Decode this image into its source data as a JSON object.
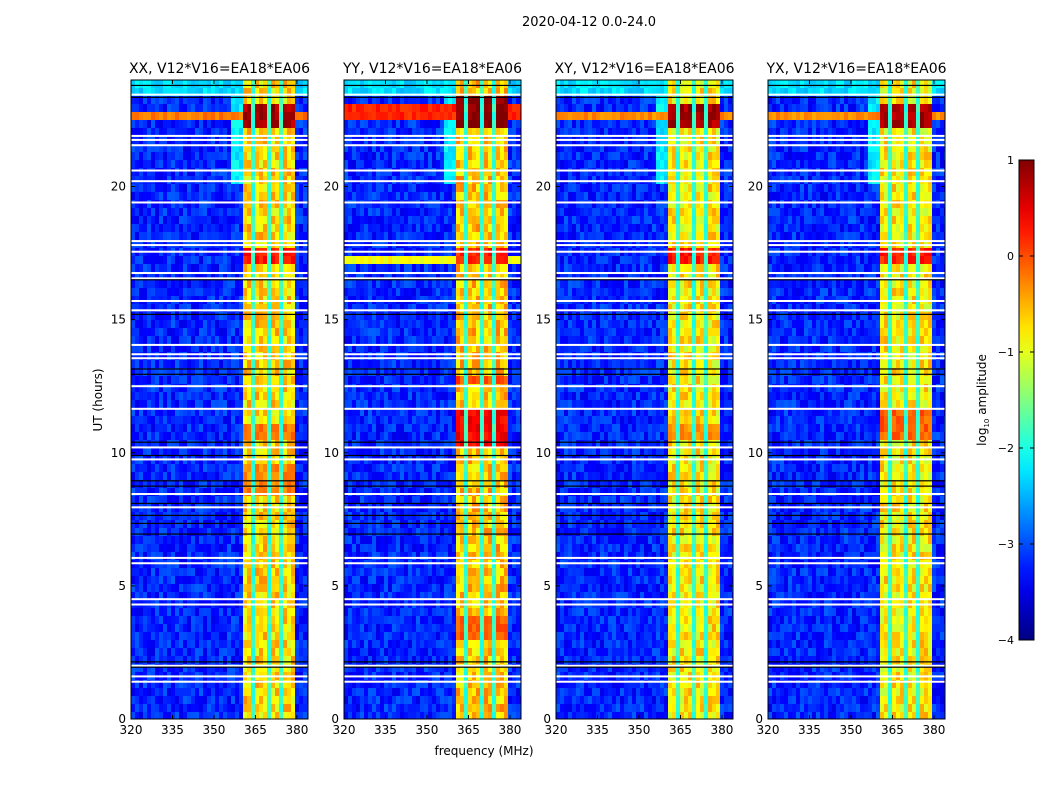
{
  "chart_data": {
    "type": "heatmap",
    "title": "2020-04-12 0.0-24.0",
    "xlabel": "frequency (MHz)",
    "ylabel": "UT (hours)",
    "xlim": [
      320,
      384
    ],
    "ylim": [
      0,
      24
    ],
    "xticks": [
      "320",
      "335",
      "350",
      "365",
      "380"
    ],
    "xtick_values": [
      320,
      335,
      350,
      365,
      380
    ],
    "yticks": [
      "0",
      "5",
      "10",
      "15",
      "20"
    ],
    "ytick_values": [
      0,
      5,
      10,
      15,
      20
    ],
    "colormap": "jet",
    "colorbar": {
      "label_main": "log",
      "label_sub": "10",
      "label_rest": " amplitude",
      "range": [
        -4,
        1
      ],
      "ticks": [
        "1",
        "0",
        "−1",
        "−2",
        "−3",
        "−4"
      ],
      "tick_values": [
        1,
        0,
        -1,
        -2,
        -3,
        -4
      ]
    },
    "panels": [
      {
        "title": "XX, V12*V16=EA18*EA06",
        "band_level": -0.7,
        "strong_intervals": [
          [
            22.3,
            23.0,
            0.8
          ],
          [
            17.1,
            17.8,
            0.3
          ],
          [
            10.6,
            11.2,
            -0.2
          ],
          [
            8.3,
            9.5,
            -0.3
          ]
        ],
        "wideband_rfi": [
          [
            22.55,
            22.85,
            -0.2
          ]
        ]
      },
      {
        "title": "YY, V12*V16=EA18*EA06",
        "band_level": -0.6,
        "strong_intervals": [
          [
            22.2,
            23.3,
            1.0
          ],
          [
            17.1,
            17.8,
            0.2
          ],
          [
            10.3,
            11.6,
            0.4
          ],
          [
            3.0,
            4.0,
            -0.1
          ],
          [
            12.5,
            13.0,
            0.0
          ]
        ],
        "wideband_rfi": [
          [
            22.4,
            23.0,
            0.2
          ],
          [
            17.1,
            17.3,
            -0.9
          ]
        ]
      },
      {
        "title": "XY, V12*V16=EA18*EA06",
        "band_level": -0.8,
        "strong_intervals": [
          [
            22.3,
            23.0,
            0.8
          ],
          [
            17.1,
            17.8,
            0.3
          ],
          [
            10.6,
            11.2,
            -0.3
          ]
        ],
        "wideband_rfi": [
          [
            22.55,
            22.85,
            -0.3
          ]
        ]
      },
      {
        "title": "YX, V12*V16=EA18*EA06",
        "band_level": -0.8,
        "strong_intervals": [
          [
            22.3,
            23.2,
            0.8
          ],
          [
            17.1,
            17.8,
            0.2
          ],
          [
            10.4,
            11.6,
            -0.1
          ]
        ],
        "wideband_rfi": [
          [
            22.55,
            22.85,
            -0.3
          ]
        ]
      }
    ],
    "rfi_band_mhz": [
      360.3,
      379.5
    ],
    "subband_gaps_mhz": [
      364.6,
      369.3,
      374.0
    ],
    "background_level": -3.2,
    "flagged_times_white": [
      23.45,
      21.9,
      21.75,
      21.55,
      20.6,
      20.2,
      19.4,
      17.95,
      17.8,
      17.55,
      16.75,
      16.55,
      15.7,
      15.35,
      14.05,
      13.7,
      13.55,
      12.5,
      11.65,
      10.2,
      9.75,
      8.45,
      7.95,
      6.05,
      5.85,
      4.5,
      4.3,
      2.0,
      1.6,
      1.4
    ],
    "flagged_times_black": [
      23.8,
      23.35,
      16.5,
      15.2,
      13.15,
      12.95,
      10.4,
      9.9,
      8.95,
      8.75,
      8.1,
      7.65,
      7.35,
      6.95,
      2.15,
      1.95
    ]
  }
}
